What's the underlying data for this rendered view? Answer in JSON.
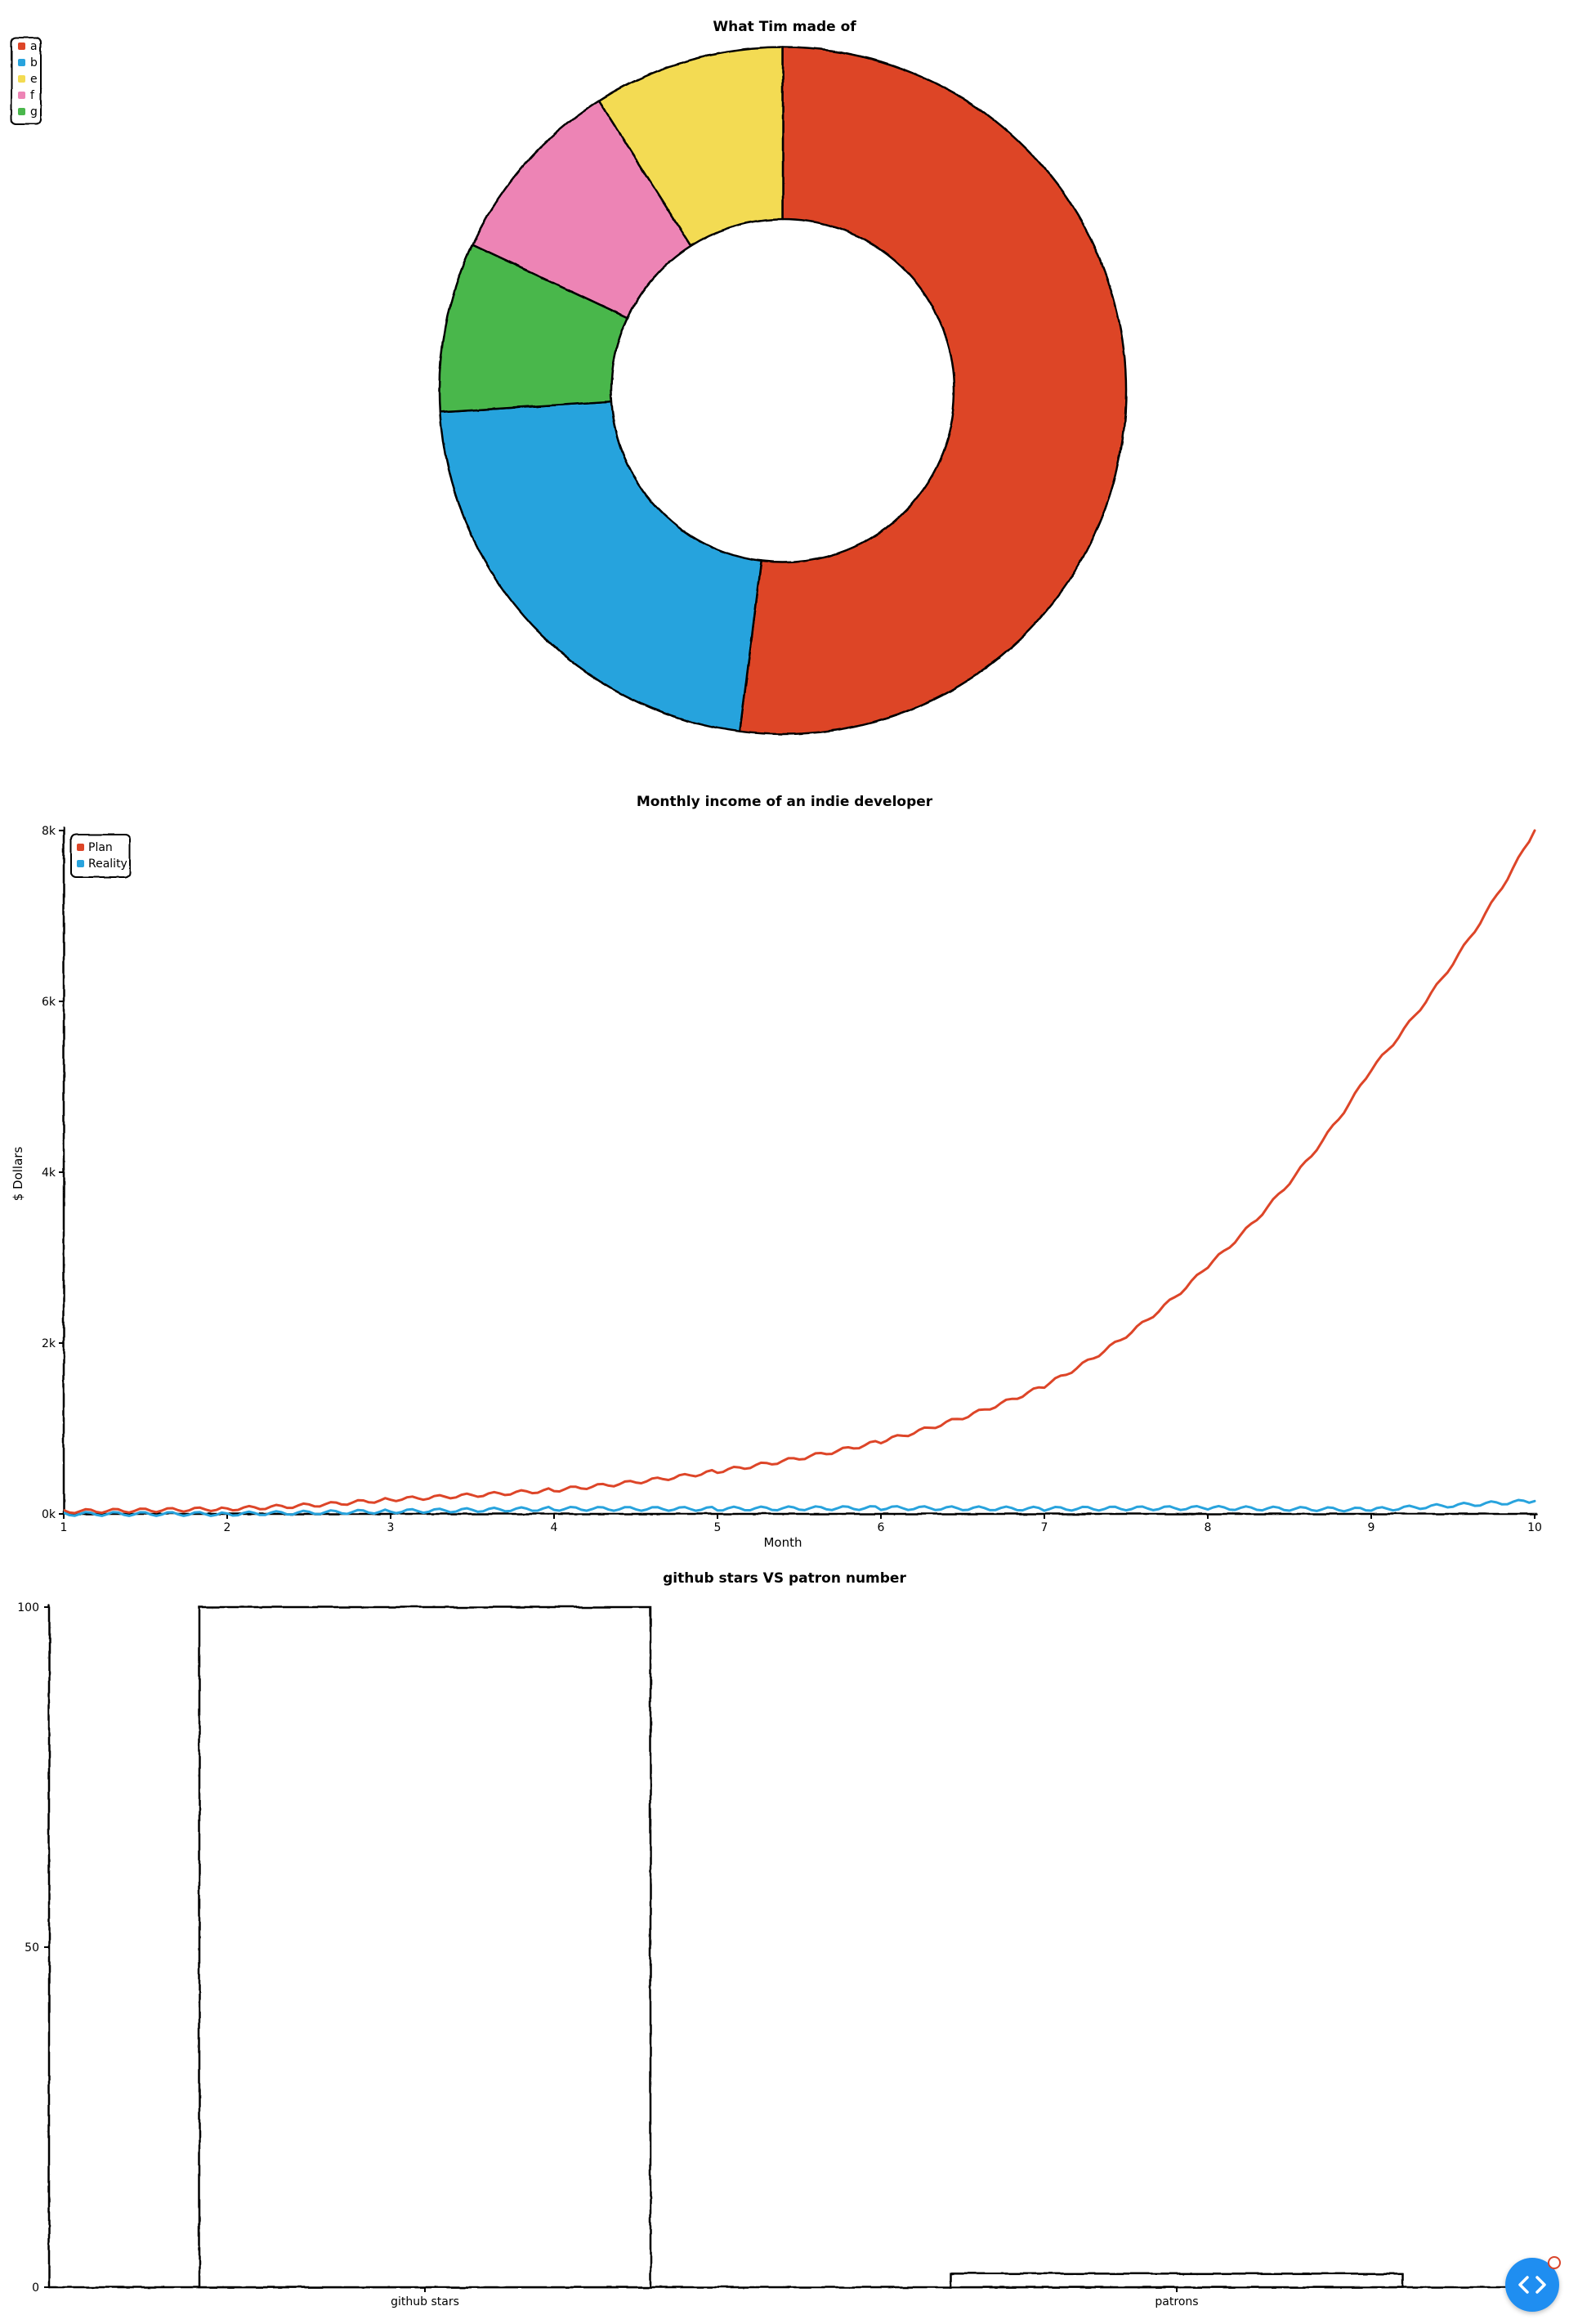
{
  "chart_data": [
    {
      "type": "pie",
      "variant": "donut",
      "title": "What Tim made of",
      "labels": [
        "a",
        "b",
        "e",
        "f",
        "g"
      ],
      "values": [
        52,
        22,
        9,
        9,
        8
      ],
      "slice_order_clockwise_from_top": [
        "a",
        "b",
        "g",
        "f",
        "e"
      ],
      "colors": {
        "a": "#dd4528",
        "b": "#28a3dd",
        "e": "#f3db52",
        "f": "#ed84b5",
        "g": "#4ab74c"
      },
      "legend": {
        "position": "top-left",
        "entries": [
          "a",
          "b",
          "e",
          "f",
          "g"
        ]
      }
    },
    {
      "type": "line",
      "title": "Monthly income of an indie developer",
      "xlabel": "Month",
      "ylabel": "$ Dollars",
      "x": [
        1,
        2,
        3,
        4,
        5,
        6,
        7,
        8,
        9,
        10
      ],
      "xlim": [
        1,
        10
      ],
      "ylim": [
        0,
        8000
      ],
      "x_ticks": [
        "1",
        "2",
        "3",
        "4",
        "5",
        "6",
        "7",
        "8",
        "9",
        "10"
      ],
      "y_ticks": [
        "0k",
        "2k",
        "4k",
        "6k",
        "8k"
      ],
      "y_tick_values": [
        0,
        2000,
        4000,
        6000,
        8000
      ],
      "series": [
        {
          "name": "Plan",
          "color": "#dd4528",
          "values": [
            30,
            60,
            170,
            280,
            500,
            850,
            1500,
            2900,
            5200,
            8000
          ]
        },
        {
          "name": "Reality",
          "color": "#28a3dd",
          "values": [
            0,
            0,
            30,
            60,
            60,
            70,
            60,
            70,
            50,
            150
          ]
        }
      ],
      "legend": {
        "position": "top-left",
        "entries": [
          "Plan",
          "Reality"
        ]
      },
      "grid": false
    },
    {
      "type": "bar",
      "title": "github stars VS patron number",
      "categories": [
        "github stars",
        "patrons"
      ],
      "values": [
        100,
        2
      ],
      "ylim": [
        0,
        100
      ],
      "y_ticks": [
        "0",
        "50",
        "100"
      ],
      "y_tick_values": [
        0,
        50,
        100
      ],
      "bar_fill": "#ffffff",
      "grid": false
    }
  ]
}
